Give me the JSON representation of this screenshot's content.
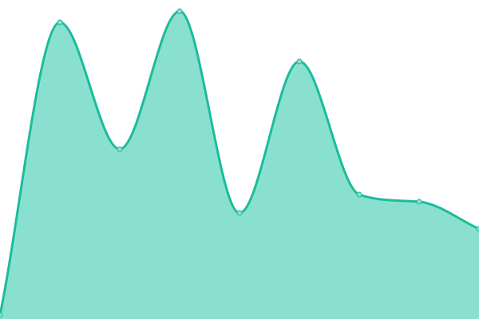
{
  "chart_data": {
    "type": "area",
    "title": "",
    "xlabel": "",
    "ylabel": "",
    "x": [
      0,
      1,
      2,
      3,
      4,
      5,
      6,
      7,
      8
    ],
    "series": [
      {
        "values": [
          5,
          372,
          213,
          386,
          133,
          323,
          156,
          147,
          113
        ]
      }
    ],
    "ylim": [
      0,
      400
    ],
    "xlim": [
      0,
      8
    ],
    "grid": false,
    "axes_visible": false,
    "smooth": true,
    "colors": {
      "line": "#1abc9c",
      "fill": "#8ae0cf",
      "marker": "#8ae0cf"
    }
  }
}
